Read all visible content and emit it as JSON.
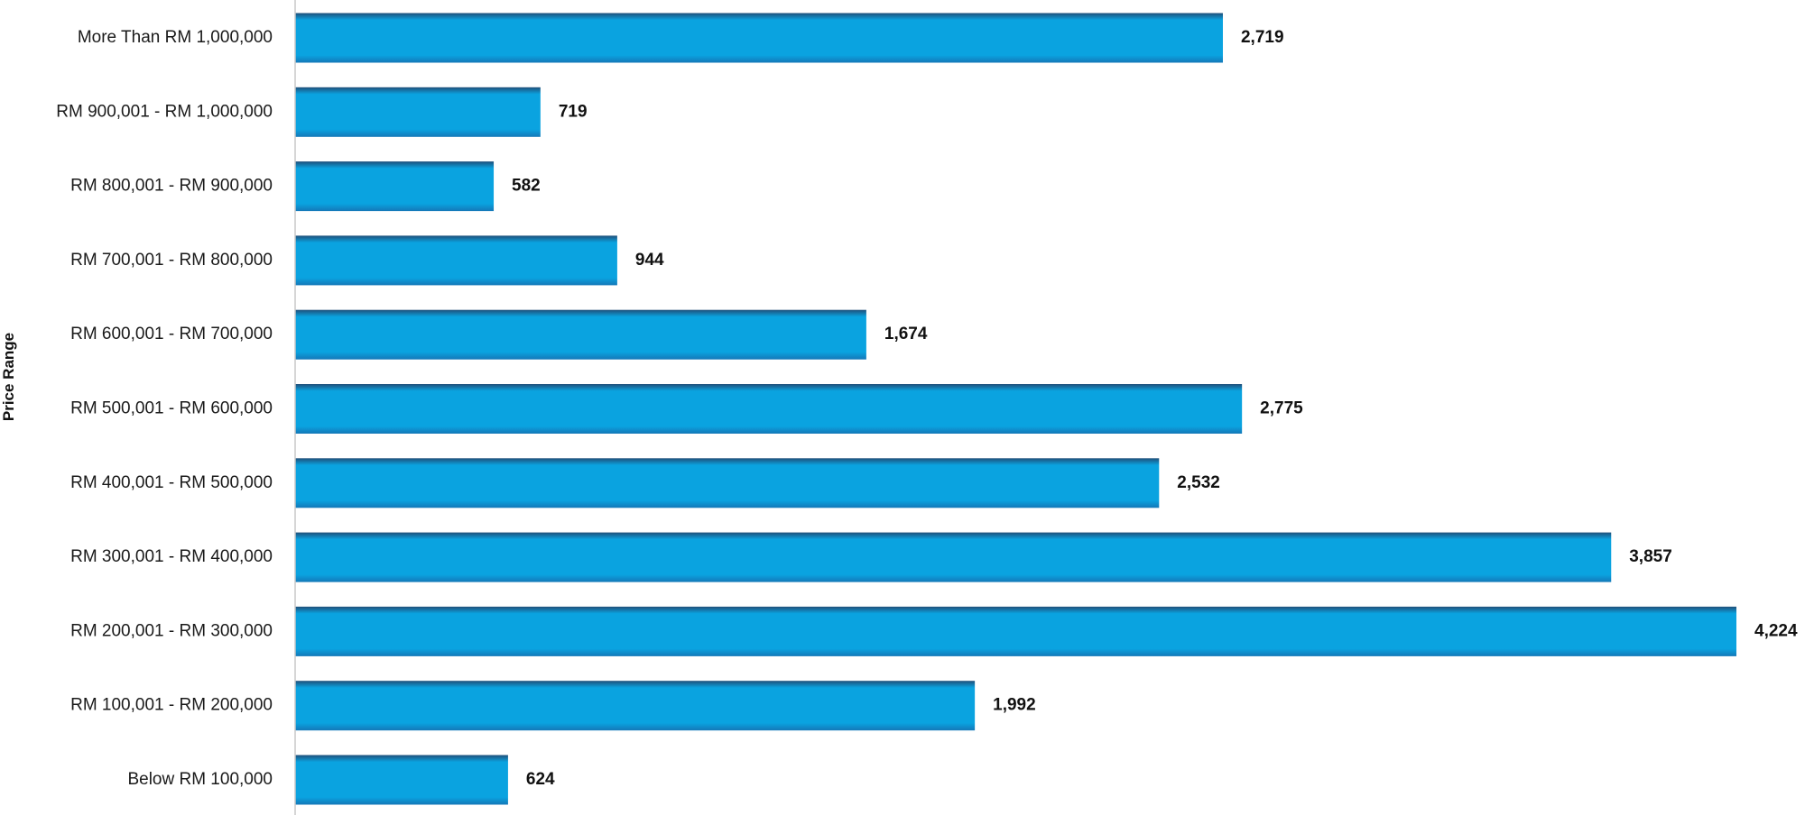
{
  "chart_data": {
    "type": "bar",
    "orientation": "horizontal",
    "title": "",
    "xlabel": "",
    "ylabel": "Price Range",
    "categories": [
      "More Than RM 1,000,000",
      "RM 900,001 - RM 1,000,000",
      "RM 800,001 - RM 900,000",
      "RM 700,001 - RM 800,000",
      "RM 600,001 - RM 700,000",
      "RM 500,001 - RM 600,000",
      "RM 400,001 - RM 500,000",
      "RM 300,001 - RM 400,000",
      "RM 200,001 - RM 300,000",
      "RM 100,001 - RM 200,000",
      "Below RM 100,000"
    ],
    "values": [
      2719,
      719,
      582,
      944,
      1674,
      2775,
      2532,
      3857,
      4224,
      1992,
      624
    ],
    "value_labels": [
      "2,719",
      "719",
      "582",
      "944",
      "1,674",
      "2,775",
      "2,532",
      "3,857",
      "4,224",
      "1,992",
      "624"
    ],
    "xlim": [
      0,
      4224
    ],
    "grid": false,
    "legend": "none",
    "colors": {
      "bar_top": "#1f4f7a",
      "bar_main": "#0aa3e0",
      "bar_bottom": "#1478b8",
      "axis": "#c8c8c8"
    }
  }
}
